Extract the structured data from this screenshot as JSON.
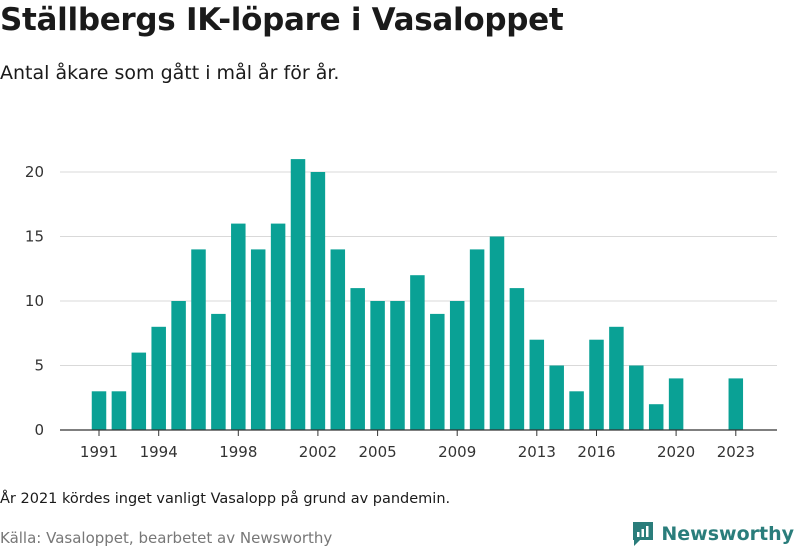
{
  "chart_data": {
    "type": "bar",
    "title": "Ställbergs IK-löpare i Vasaloppet",
    "subtitle": "Antal åkare som gått i mål år för år.",
    "x": [
      1991,
      1992,
      1993,
      1994,
      1995,
      1996,
      1997,
      1998,
      1999,
      2000,
      2001,
      2002,
      2003,
      2004,
      2005,
      2006,
      2007,
      2008,
      2009,
      2010,
      2011,
      2012,
      2013,
      2014,
      2015,
      2016,
      2017,
      2018,
      2019,
      2020,
      2021,
      2022,
      2023
    ],
    "values": [
      3,
      3,
      6,
      8,
      10,
      14,
      9,
      16,
      14,
      16,
      21,
      20,
      14,
      11,
      10,
      10,
      12,
      9,
      10,
      14,
      15,
      11,
      7,
      5,
      3,
      7,
      8,
      5,
      2,
      4,
      null,
      0,
      4
    ],
    "x_tick_labels": [
      "1991",
      "1994",
      "1998",
      "2002",
      "2005",
      "2009",
      "2013",
      "2016",
      "2020",
      "2023"
    ],
    "y_ticks": [
      0,
      5,
      10,
      15,
      20
    ],
    "ylim": [
      0,
      22
    ],
    "grid": true,
    "bar_color": "#0aa195",
    "xlabel": "",
    "ylabel": ""
  },
  "note": "År 2021 kördes inget vanligt Vasalopp på grund av pandemin.",
  "source": "Källa: Vasaloppet, bearbetet av Newsworthy",
  "logo": {
    "text": "Newsworthy",
    "icon": "newsworthy-logo-icon",
    "color": "#2a7d7b"
  }
}
